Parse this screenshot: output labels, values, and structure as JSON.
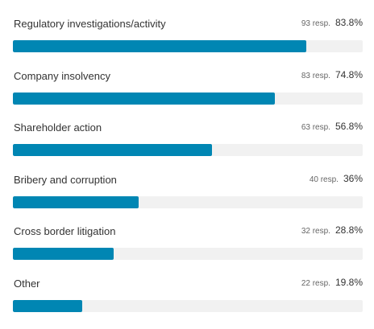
{
  "colors": {
    "bar": "#0086b3",
    "track": "#f1f1f1"
  },
  "chart_data": {
    "type": "bar",
    "orientation": "horizontal",
    "categories": [
      "Regulatory investigations/activity",
      "Company insolvency",
      "Shareholder action",
      "Bribery and corruption",
      "Cross border litigation",
      "Other"
    ],
    "values": [
      83.8,
      74.8,
      56.8,
      36,
      28.8,
      19.8
    ],
    "responses": [
      93,
      83,
      63,
      40,
      32,
      22
    ],
    "resp_labels": [
      "93 resp.",
      "83 resp.",
      "63 resp.",
      "40 resp.",
      "32 resp.",
      "22 resp."
    ],
    "pct_labels": [
      "83.8%",
      "74.8%",
      "56.8%",
      "36%",
      "28.8%",
      "19.8%"
    ],
    "xlim": [
      0,
      100
    ]
  }
}
